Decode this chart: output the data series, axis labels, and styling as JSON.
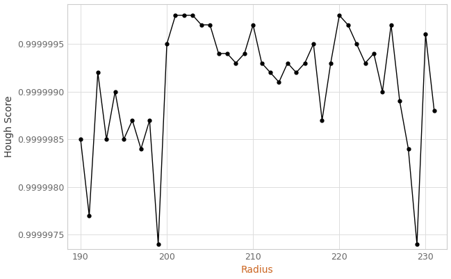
{
  "x": [
    190,
    191,
    192,
    193,
    194,
    195,
    196,
    197,
    198,
    199,
    200,
    201,
    202,
    203,
    204,
    205,
    206,
    207,
    208,
    209,
    210,
    211,
    212,
    213,
    214,
    215,
    216,
    217,
    218,
    219,
    220,
    221,
    222,
    223,
    224,
    225,
    226,
    227,
    228,
    229,
    230,
    231
  ],
  "y": [
    0.9999985,
    0.9999977,
    0.9999992,
    0.9999985,
    0.999999,
    0.9999985,
    0.9999987,
    0.9999984,
    0.9999987,
    0.9999974,
    0.9999995,
    0.9999998,
    0.9999998,
    0.9999998,
    0.9999997,
    0.9999997,
    0.9999994,
    0.9999994,
    0.9999993,
    0.9999994,
    0.9999997,
    0.9999993,
    0.9999992,
    0.9999991,
    0.9999993,
    0.9999992,
    0.9999993,
    0.9999995,
    0.9999987,
    0.9999993,
    0.9999998,
    0.9999997,
    0.9999995,
    0.9999993,
    0.9999994,
    0.999999,
    0.9999997,
    0.9999989,
    0.9999984,
    0.9999974,
    0.9999996,
    0.9999988
  ],
  "xlabel": "Radius",
  "ylabel": "Hough Score",
  "xlim": [
    188.5,
    232.5
  ],
  "ylim": [
    0.99999735,
    0.99999992
  ],
  "xticks": [
    190,
    200,
    210,
    220,
    230
  ],
  "ytick_values": [
    0.9999975,
    0.999998,
    0.9999985,
    0.999999,
    0.9999995
  ],
  "bg_color": "#ffffff",
  "line_color": "#000000",
  "marker_size": 3.5,
  "line_width": 1.0,
  "xlabel_color": "#cc6622",
  "ylabel_color": "#333333",
  "grid_color": "#dddddd",
  "spine_color": "#cccccc",
  "tick_label_color": "#666666"
}
